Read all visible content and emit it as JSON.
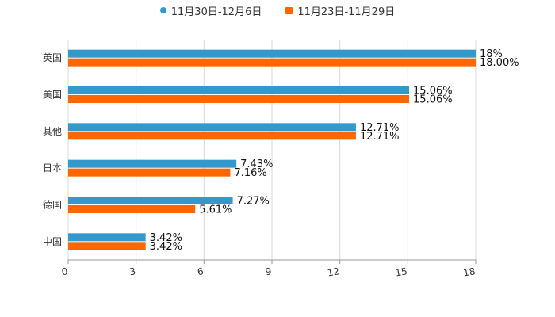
{
  "chart_data": {
    "type": "bar",
    "orientation": "horizontal",
    "title": "",
    "xlabel": "",
    "ylabel": "",
    "xlim": [
      0,
      18
    ],
    "xticks": [
      "0",
      "3",
      "6",
      "9",
      "12",
      "15",
      "18"
    ],
    "grid": true,
    "legend_position": "top-center",
    "categories": [
      "英国",
      "美国",
      "其他",
      "日本",
      "德国",
      "中国"
    ],
    "series": [
      {
        "name": "11月30日-12月6日",
        "color": "#3399CC",
        "marker": "circle",
        "values": [
          18,
          15.06,
          12.71,
          7.43,
          7.27,
          3.42
        ],
        "labels": [
          "18%",
          "15.06%",
          "12.71%",
          "7.43%",
          "7.27%",
          "3.42%"
        ]
      },
      {
        "name": "11月23日-11月29日",
        "color": "#FF6600",
        "marker": "square",
        "values": [
          18.0,
          15.06,
          12.71,
          7.16,
          5.61,
          3.42
        ],
        "labels": [
          "18.00%",
          "15.06%",
          "12.71%",
          "7.16%",
          "5.61%",
          "3.42%"
        ]
      }
    ]
  }
}
